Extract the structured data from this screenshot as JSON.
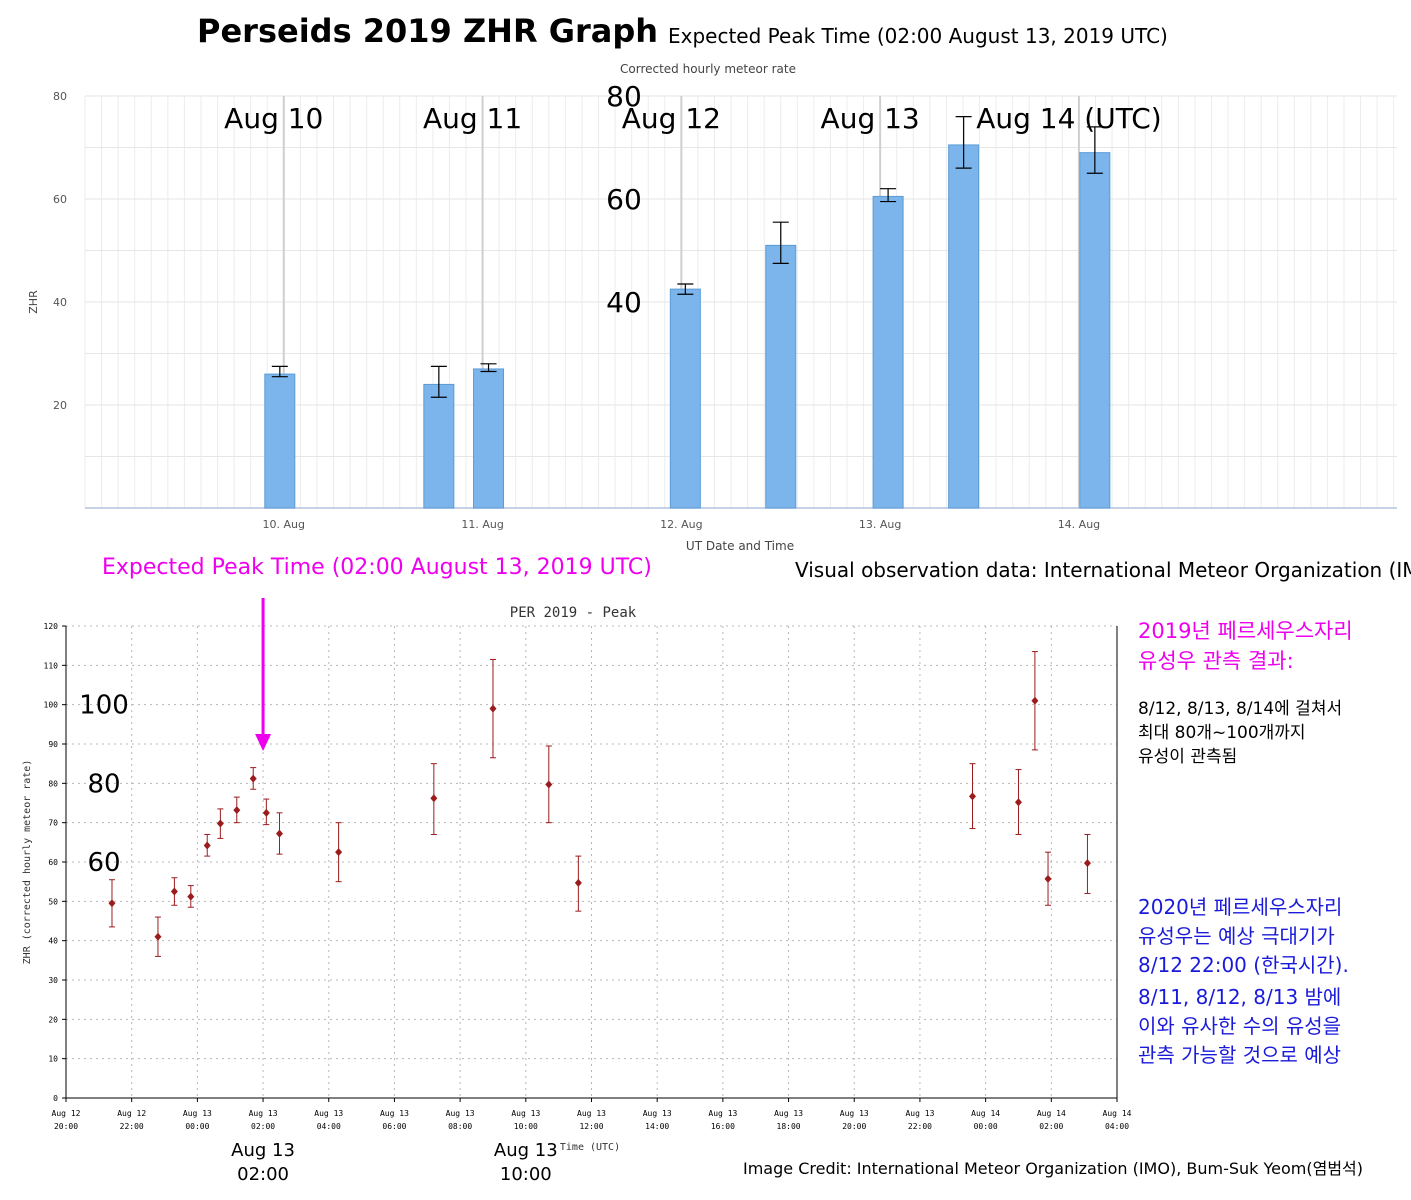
{
  "header": {
    "title": "Perseids 2019 ZHR Graph",
    "peak_time_top": "Expected Peak Time (02:00 August 13, 2019 UTC)",
    "observation_source": "Visual observation data: International Meteor Organization (IMO)",
    "peak_time_bottom": "Expected Peak Time (02:00 August 13, 2019 UTC)",
    "credit": "Image Credit: International Meteor Organization (IMO), Bum-Suk Yeom(염범석)"
  },
  "notes": {
    "result_title_1": "2019년 페르세우스자리",
    "result_title_2": "유성우 관측 결과:",
    "result_body_1": "8/12, 8/13, 8/14에 걸쳐서",
    "result_body_2": "최대 80개~100개까지",
    "result_body_3": "유성이 관측됨",
    "forecast_1": "2020년 페르세우스자리",
    "forecast_2": "유성우는 예상 극대기가",
    "forecast_3": "8/12 22:00 (한국시간).",
    "forecast_4": "8/11, 8/12, 8/13 밤에",
    "forecast_5": "이와 유사한 수의 유성을",
    "forecast_6": "관측 가능할 것으로 예상"
  },
  "colors": {
    "bar_fill": "#7cb5ec",
    "bar_stroke": "#5b9bd5",
    "point": "#9b1c1c",
    "peak_arrow": "#ee00ee",
    "forecast_text": "#1a1adb"
  },
  "chart_data": [
    {
      "type": "bar",
      "title": "Corrected hourly meteor rate",
      "xlabel": "UT Date and Time",
      "ylabel": "ZHR",
      "x_range_days": [
        9.0,
        15.6
      ],
      "ylim": [
        0,
        80
      ],
      "y_ticks": [
        "20",
        "40",
        "60",
        "80"
      ],
      "x_ticks": [
        {
          "day": 10,
          "label": "10. Aug"
        },
        {
          "day": 11,
          "label": "11. Aug"
        },
        {
          "day": 12,
          "label": "12. Aug"
        },
        {
          "day": 13,
          "label": "13. Aug"
        },
        {
          "day": 14,
          "label": "14. Aug"
        }
      ],
      "day_annotations": [
        {
          "day": 10,
          "label": "Aug 10"
        },
        {
          "day": 11,
          "label": "Aug 11"
        },
        {
          "day": 12,
          "label": "Aug 12"
        },
        {
          "day": 13,
          "label": "Aug 13"
        },
        {
          "day": 14,
          "label": "Aug 14 (UTC)"
        }
      ],
      "overlay_y_labels": [
        {
          "value": 80,
          "label": "80"
        },
        {
          "value": 60,
          "label": "60"
        },
        {
          "value": 40,
          "label": "40"
        }
      ],
      "bars": [
        {
          "time": 9.98,
          "value": 26,
          "low": 25.5,
          "high": 27.5
        },
        {
          "time": 10.78,
          "value": 24,
          "low": 21.5,
          "high": 27.5
        },
        {
          "time": 11.03,
          "value": 27,
          "low": 26.5,
          "high": 28
        },
        {
          "time": 12.02,
          "value": 42.5,
          "low": 41.5,
          "high": 43.5
        },
        {
          "time": 12.5,
          "value": 51,
          "low": 47.5,
          "high": 55.5
        },
        {
          "time": 13.04,
          "value": 60.5,
          "low": 59.5,
          "high": 62
        },
        {
          "time": 13.42,
          "value": 70.5,
          "low": 66,
          "high": 76
        },
        {
          "time": 14.08,
          "value": 69,
          "low": 65,
          "high": 74
        }
      ]
    },
    {
      "type": "scatter",
      "title": "PER 2019 - Peak",
      "xlabel": "Time (UTC)",
      "ylabel": "ZHR (corrected hourly meteor rate)",
      "x_range_hours_from_aug12_2000": [
        0,
        32
      ],
      "ylim": [
        0,
        120
      ],
      "y_ticks": [
        "0",
        "10",
        "20",
        "30",
        "40",
        "50",
        "60",
        "70",
        "80",
        "90",
        "100",
        "110",
        "120"
      ],
      "x_ticks": [
        {
          "line1": "Aug 12",
          "line2": "20:00"
        },
        {
          "line1": "Aug 12",
          "line2": "22:00"
        },
        {
          "line1": "Aug 13",
          "line2": "00:00"
        },
        {
          "line1": "Aug 13",
          "line2": "02:00"
        },
        {
          "line1": "Aug 13",
          "line2": "04:00"
        },
        {
          "line1": "Aug 13",
          "line2": "06:00"
        },
        {
          "line1": "Aug 13",
          "line2": "08:00"
        },
        {
          "line1": "Aug 13",
          "line2": "10:00"
        },
        {
          "line1": "Aug 13",
          "line2": "12:00"
        },
        {
          "line1": "Aug 13",
          "line2": "14:00"
        },
        {
          "line1": "Aug 13",
          "line2": "16:00"
        },
        {
          "line1": "Aug 13",
          "line2": "18:00"
        },
        {
          "line1": "Aug 13",
          "line2": "20:00"
        },
        {
          "line1": "Aug 13",
          "line2": "22:00"
        },
        {
          "line1": "Aug 14",
          "line2": "00:00"
        },
        {
          "line1": "Aug 14",
          "line2": "02:00"
        },
        {
          "line1": "Aug 14",
          "line2": "04:00"
        }
      ],
      "overlay_y_labels": [
        {
          "value": 100,
          "label": "100"
        },
        {
          "value": 80,
          "label": "80"
        },
        {
          "value": 60,
          "label": "60"
        }
      ],
      "bottom_annotations": [
        {
          "hour": 6.0,
          "line1": "Aug 13",
          "line2": "02:00"
        },
        {
          "hour": 14.0,
          "line1": "Aug 13",
          "line2": "10:00"
        }
      ],
      "peak_hour": 6.0,
      "points": [
        {
          "h": 1.4,
          "y": 49.5,
          "low": 43.5,
          "high": 55.5
        },
        {
          "h": 2.8,
          "y": 41,
          "low": 36,
          "high": 46
        },
        {
          "h": 3.3,
          "y": 52.5,
          "low": 49,
          "high": 56
        },
        {
          "h": 3.8,
          "y": 51.2,
          "low": 48.5,
          "high": 54
        },
        {
          "h": 4.3,
          "y": 64.2,
          "low": 61.5,
          "high": 67
        },
        {
          "h": 4.7,
          "y": 69.8,
          "low": 66,
          "high": 73.5
        },
        {
          "h": 5.2,
          "y": 73.2,
          "low": 70,
          "high": 76.5
        },
        {
          "h": 5.7,
          "y": 81.2,
          "low": 78.5,
          "high": 84
        },
        {
          "h": 6.1,
          "y": 72.5,
          "low": 69.5,
          "high": 76
        },
        {
          "h": 6.5,
          "y": 67.2,
          "low": 62,
          "high": 72.5
        },
        {
          "h": 8.3,
          "y": 62.5,
          "low": 55,
          "high": 70
        },
        {
          "h": 11.2,
          "y": 76.2,
          "low": 67,
          "high": 85
        },
        {
          "h": 13.0,
          "y": 99,
          "low": 86.5,
          "high": 111.5
        },
        {
          "h": 14.7,
          "y": 79.7,
          "low": 70,
          "high": 89.5
        },
        {
          "h": 15.6,
          "y": 54.7,
          "low": 47.5,
          "high": 61.5
        },
        {
          "h": 27.6,
          "y": 76.7,
          "low": 68.5,
          "high": 85
        },
        {
          "h": 29.0,
          "y": 75.2,
          "low": 67,
          "high": 83.5
        },
        {
          "h": 29.5,
          "y": 101,
          "low": 88.5,
          "high": 113.5
        },
        {
          "h": 29.9,
          "y": 55.7,
          "low": 49,
          "high": 62.5
        },
        {
          "h": 31.1,
          "y": 59.7,
          "low": 52,
          "high": 67
        }
      ]
    }
  ]
}
